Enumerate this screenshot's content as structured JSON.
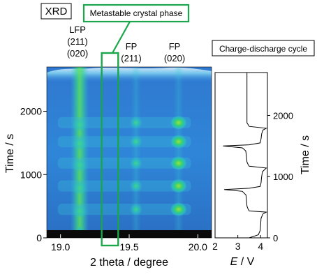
{
  "chart_data": [
    {
      "type": "heatmap",
      "panel_label": "XRD",
      "xlabel": "2 theta / degree",
      "ylabel": "Time / s",
      "xlim": [
        18.9,
        20.1
      ],
      "ylim": [
        0,
        2700
      ],
      "xticks": [
        19.0,
        19.5,
        20.0
      ],
      "xtick_labels": [
        "19.0",
        "19.5",
        "20.0"
      ],
      "yticks": [
        0,
        1000,
        2000
      ],
      "ytick_labels": [
        "0",
        "1000",
        "2000"
      ],
      "colormap": [
        "#000000",
        "#3b7ccf",
        "#36a8e8",
        "#29c7c0",
        "#3fd884",
        "#8ce03a",
        "#f2e21a",
        "#ff2a00",
        "#ffffff"
      ],
      "background_color": "#3b7ccf",
      "peaks": [
        {
          "label": "LFP\n(211)\n(020)",
          "two_theta": 19.14
        },
        {
          "label": "FP\n(211)",
          "two_theta": 19.55
        },
        {
          "label": "FP\n(020)",
          "two_theta": 19.86
        }
      ],
      "annotation": {
        "text": "Metastable crystal phase",
        "two_theta_range": [
          19.3,
          19.42
        ],
        "color": "#1aa64a"
      },
      "cycle_times": [
        450,
        820,
        1180,
        1520,
        1820
      ],
      "cycle_width": 130,
      "lfp_intensity_high_until": 180,
      "top_ridge_time": 2700
    },
    {
      "type": "line",
      "title": "Charge-discharge cycle",
      "xlabel_italic": "E",
      "xlabel_rest": " / V",
      "ylabel": "Time / s",
      "xlim": [
        2.0,
        4.3
      ],
      "ylim": [
        0,
        2700
      ],
      "xticks": [
        2,
        3,
        4
      ],
      "xtick_labels": [
        "2",
        "3",
        "4"
      ],
      "yticks": [
        0,
        1000,
        2000
      ],
      "ytick_labels": [
        "0",
        "1000",
        "2000"
      ],
      "series": [
        {
          "t": [
            0,
            50,
            120,
            200,
            320,
            390,
            420,
            440,
            470,
            520,
            600,
            700,
            760,
            790,
            810,
            840,
            900,
            980,
            1080,
            1140,
            1170,
            1200,
            1240,
            1320,
            1420,
            1470,
            1500,
            1520,
            1550,
            1620,
            1700,
            1760,
            1790,
            1820,
            1850,
            1880,
            2700
          ],
          "E": [
            3.5,
            3.9,
            3.98,
            4.0,
            4.02,
            4.1,
            4.25,
            3.5,
            3.45,
            3.4,
            3.38,
            3.36,
            3.2,
            2.4,
            3.5,
            3.98,
            4.02,
            4.04,
            4.08,
            4.25,
            3.5,
            3.45,
            3.4,
            3.38,
            3.35,
            3.2,
            2.35,
            3.5,
            3.98,
            4.02,
            4.05,
            4.1,
            4.25,
            3.5,
            3.45,
            3.4,
            3.4
          ]
        }
      ]
    }
  ]
}
